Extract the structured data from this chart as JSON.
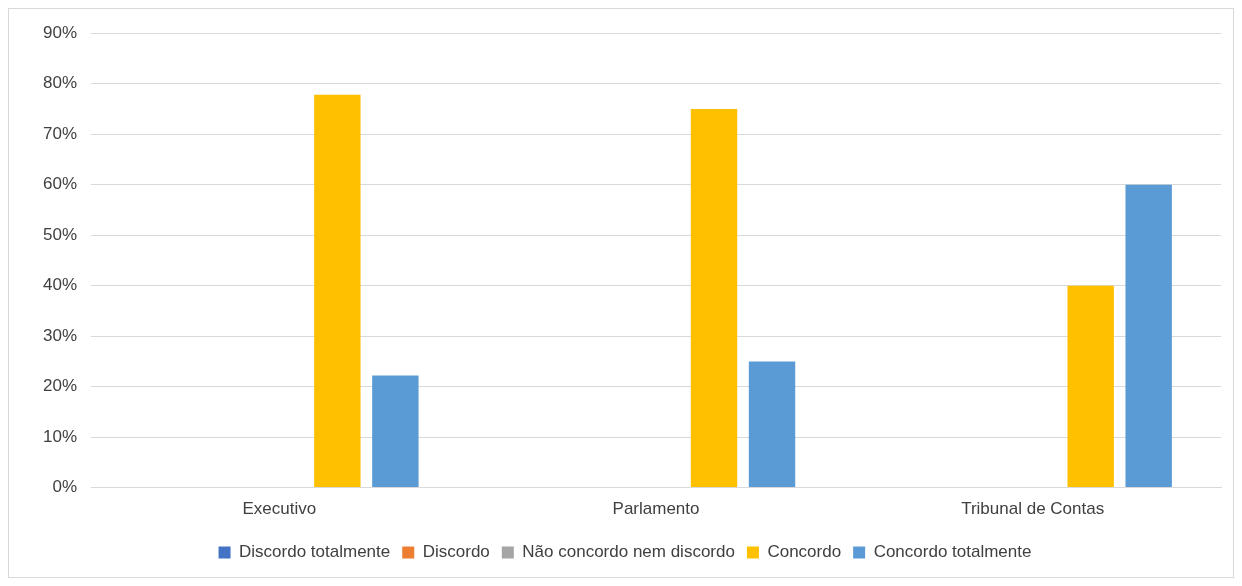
{
  "chart_data": {
    "type": "bar",
    "categories": [
      "Executivo",
      "Parlamento",
      "Tribunal de Contas"
    ],
    "series": [
      {
        "name": "Discordo totalmente",
        "color": "#4472c4",
        "values": [
          0,
          0,
          0
        ]
      },
      {
        "name": "Discordo",
        "color": "#ed7d31",
        "values": [
          0,
          0,
          0
        ]
      },
      {
        "name": "Não concordo nem discordo",
        "color": "#a5a5a5",
        "values": [
          0,
          0,
          0
        ]
      },
      {
        "name": "Concordo",
        "color": "#ffc000",
        "values": [
          77.8,
          75,
          40
        ]
      },
      {
        "name": "Concordo totalmente",
        "color": "#5b9bd5",
        "values": [
          22.2,
          25,
          60
        ]
      }
    ],
    "ylim": [
      0,
      90
    ],
    "yticks": [
      {
        "value": 0,
        "label": "0%"
      },
      {
        "value": 10,
        "label": "10%"
      },
      {
        "value": 20,
        "label": "20%"
      },
      {
        "value": 30,
        "label": "30%"
      },
      {
        "value": 40,
        "label": "40%"
      },
      {
        "value": 50,
        "label": "50%"
      },
      {
        "value": 60,
        "label": "60%"
      },
      {
        "value": 70,
        "label": "70%"
      },
      {
        "value": 80,
        "label": "80%"
      },
      {
        "value": 90,
        "label": "90%"
      }
    ],
    "grid": "y",
    "legend": "bottom"
  }
}
